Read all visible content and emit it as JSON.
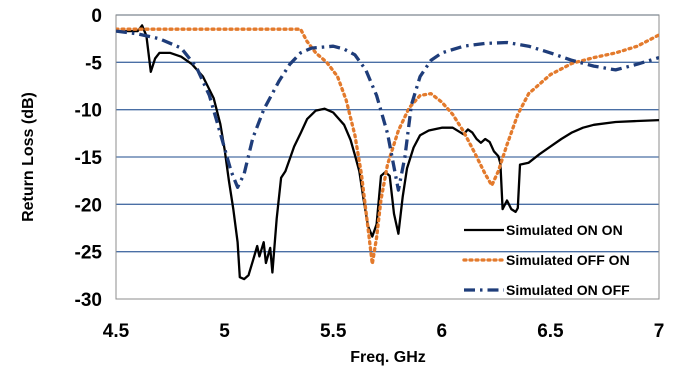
{
  "chart_data": {
    "type": "line",
    "title": "",
    "xlabel": "Freq. GHz",
    "ylabel": "Return Loss (dB)",
    "xlim": [
      4.5,
      7
    ],
    "ylim": [
      -30,
      0
    ],
    "xticks": [
      4.5,
      5,
      5.5,
      6,
      6.5,
      7
    ],
    "yticks": [
      0,
      -5,
      -10,
      -15,
      -20,
      -25,
      -30
    ],
    "xtick_labels": [
      "4.5",
      "5",
      "5.5",
      "6",
      "6.5",
      "7"
    ],
    "ytick_labels": [
      "0",
      "-5",
      "-10",
      "-15",
      "-20",
      "-25",
      "-30"
    ],
    "grid": "horizontal",
    "legend_position": "bottom-right",
    "series": [
      {
        "name": "Simulated ON ON",
        "color": "#000000",
        "style": "solid",
        "points": [
          [
            4.5,
            -1.7
          ],
          [
            4.6,
            -1.7
          ],
          [
            4.62,
            -1.1
          ],
          [
            4.64,
            -2.2
          ],
          [
            4.66,
            -6.0
          ],
          [
            4.68,
            -4.6
          ],
          [
            4.7,
            -4.0
          ],
          [
            4.75,
            -4.0
          ],
          [
            4.8,
            -4.4
          ],
          [
            4.85,
            -5.2
          ],
          [
            4.9,
            -6.5
          ],
          [
            4.95,
            -8.8
          ],
          [
            4.98,
            -11.5
          ],
          [
            5.0,
            -14.2
          ],
          [
            5.02,
            -17.5
          ],
          [
            5.04,
            -20.5
          ],
          [
            5.06,
            -24.0
          ],
          [
            5.07,
            -27.7
          ],
          [
            5.09,
            -27.9
          ],
          [
            5.11,
            -27.5
          ],
          [
            5.13,
            -26.0
          ],
          [
            5.15,
            -24.4
          ],
          [
            5.16,
            -25.5
          ],
          [
            5.18,
            -24.0
          ],
          [
            5.19,
            -26.2
          ],
          [
            5.21,
            -24.6
          ],
          [
            5.22,
            -27.2
          ],
          [
            5.24,
            -21.5
          ],
          [
            5.26,
            -17.2
          ],
          [
            5.28,
            -16.5
          ],
          [
            5.3,
            -15.2
          ],
          [
            5.32,
            -13.9
          ],
          [
            5.35,
            -12.5
          ],
          [
            5.38,
            -11.0
          ],
          [
            5.42,
            -10.1
          ],
          [
            5.46,
            -9.9
          ],
          [
            5.5,
            -10.3
          ],
          [
            5.55,
            -11.6
          ],
          [
            5.58,
            -13.2
          ],
          [
            5.6,
            -14.8
          ],
          [
            5.62,
            -16.5
          ],
          [
            5.64,
            -19.5
          ],
          [
            5.66,
            -22.3
          ],
          [
            5.68,
            -23.4
          ],
          [
            5.7,
            -22.1
          ],
          [
            5.72,
            -17.0
          ],
          [
            5.74,
            -16.6
          ],
          [
            5.76,
            -17.0
          ],
          [
            5.78,
            -21.0
          ],
          [
            5.8,
            -23.1
          ],
          [
            5.82,
            -19.2
          ],
          [
            5.84,
            -16.2
          ],
          [
            5.87,
            -14.0
          ],
          [
            5.9,
            -12.7
          ],
          [
            5.94,
            -12.2
          ],
          [
            6.0,
            -11.9
          ],
          [
            6.05,
            -11.9
          ],
          [
            6.1,
            -12.6
          ],
          [
            6.12,
            -12.1
          ],
          [
            6.14,
            -12.4
          ],
          [
            6.16,
            -13.1
          ],
          [
            6.18,
            -13.5
          ],
          [
            6.2,
            -13.1
          ],
          [
            6.22,
            -13.4
          ],
          [
            6.24,
            -14.4
          ],
          [
            6.26,
            -14.9
          ],
          [
            6.27,
            -15.7
          ],
          [
            6.28,
            -20.5
          ],
          [
            6.3,
            -19.6
          ],
          [
            6.32,
            -20.5
          ],
          [
            6.34,
            -20.8
          ],
          [
            6.35,
            -20.4
          ],
          [
            6.36,
            -15.8
          ],
          [
            6.4,
            -15.6
          ],
          [
            6.45,
            -14.7
          ],
          [
            6.5,
            -13.9
          ],
          [
            6.55,
            -13.1
          ],
          [
            6.6,
            -12.4
          ],
          [
            6.65,
            -11.9
          ],
          [
            6.7,
            -11.6
          ],
          [
            6.8,
            -11.3
          ],
          [
            6.9,
            -11.2
          ],
          [
            7.0,
            -11.1
          ]
        ]
      },
      {
        "name": "Simulated OFF ON",
        "color": "#E37A2C",
        "style": "dotted",
        "points": [
          [
            4.5,
            -1.5
          ],
          [
            4.7,
            -1.5
          ],
          [
            5.0,
            -1.5
          ],
          [
            5.2,
            -1.5
          ],
          [
            5.35,
            -1.5
          ],
          [
            5.38,
            -2.8
          ],
          [
            5.42,
            -4.0
          ],
          [
            5.47,
            -5.0
          ],
          [
            5.52,
            -6.5
          ],
          [
            5.56,
            -9.0
          ],
          [
            5.6,
            -12.7
          ],
          [
            5.63,
            -16.8
          ],
          [
            5.66,
            -22.5
          ],
          [
            5.68,
            -26.3
          ],
          [
            5.7,
            -23.5
          ],
          [
            5.72,
            -19.5
          ],
          [
            5.75,
            -15.8
          ],
          [
            5.8,
            -12.2
          ],
          [
            5.85,
            -9.8
          ],
          [
            5.9,
            -8.5
          ],
          [
            5.95,
            -8.3
          ],
          [
            6.0,
            -9.2
          ],
          [
            6.05,
            -10.5
          ],
          [
            6.1,
            -12.3
          ],
          [
            6.15,
            -14.5
          ],
          [
            6.2,
            -16.8
          ],
          [
            6.23,
            -18.0
          ],
          [
            6.26,
            -16.5
          ],
          [
            6.3,
            -13.7
          ],
          [
            6.35,
            -10.5
          ],
          [
            6.4,
            -8.3
          ],
          [
            6.5,
            -6.3
          ],
          [
            6.6,
            -5.1
          ],
          [
            6.7,
            -4.5
          ],
          [
            6.8,
            -4.0
          ],
          [
            6.9,
            -3.3
          ],
          [
            7.0,
            -2.1
          ]
        ]
      },
      {
        "name": "Simulated ON OFF",
        "color": "#1F3D7A",
        "style": "dashdot",
        "points": [
          [
            4.5,
            -1.7
          ],
          [
            4.6,
            -2.0
          ],
          [
            4.7,
            -2.5
          ],
          [
            4.8,
            -3.5
          ],
          [
            4.87,
            -5.5
          ],
          [
            4.93,
            -8.5
          ],
          [
            4.98,
            -12.5
          ],
          [
            5.03,
            -16.5
          ],
          [
            5.06,
            -18.2
          ],
          [
            5.09,
            -16.8
          ],
          [
            5.13,
            -13.0
          ],
          [
            5.18,
            -10.0
          ],
          [
            5.25,
            -7.0
          ],
          [
            5.3,
            -5.2
          ],
          [
            5.35,
            -4.0
          ],
          [
            5.4,
            -3.5
          ],
          [
            5.5,
            -3.3
          ],
          [
            5.55,
            -3.6
          ],
          [
            5.6,
            -4.2
          ],
          [
            5.65,
            -5.8
          ],
          [
            5.7,
            -8.5
          ],
          [
            5.75,
            -12.5
          ],
          [
            5.8,
            -18.5
          ],
          [
            5.83,
            -15.0
          ],
          [
            5.86,
            -9.5
          ],
          [
            5.9,
            -6.5
          ],
          [
            5.95,
            -4.8
          ],
          [
            6.0,
            -4.0
          ],
          [
            6.1,
            -3.3
          ],
          [
            6.2,
            -3.0
          ],
          [
            6.3,
            -2.9
          ],
          [
            6.4,
            -3.3
          ],
          [
            6.5,
            -4.0
          ],
          [
            6.6,
            -4.8
          ],
          [
            6.7,
            -5.4
          ],
          [
            6.8,
            -5.8
          ],
          [
            6.9,
            -5.2
          ],
          [
            7.0,
            -4.5
          ]
        ]
      }
    ]
  }
}
